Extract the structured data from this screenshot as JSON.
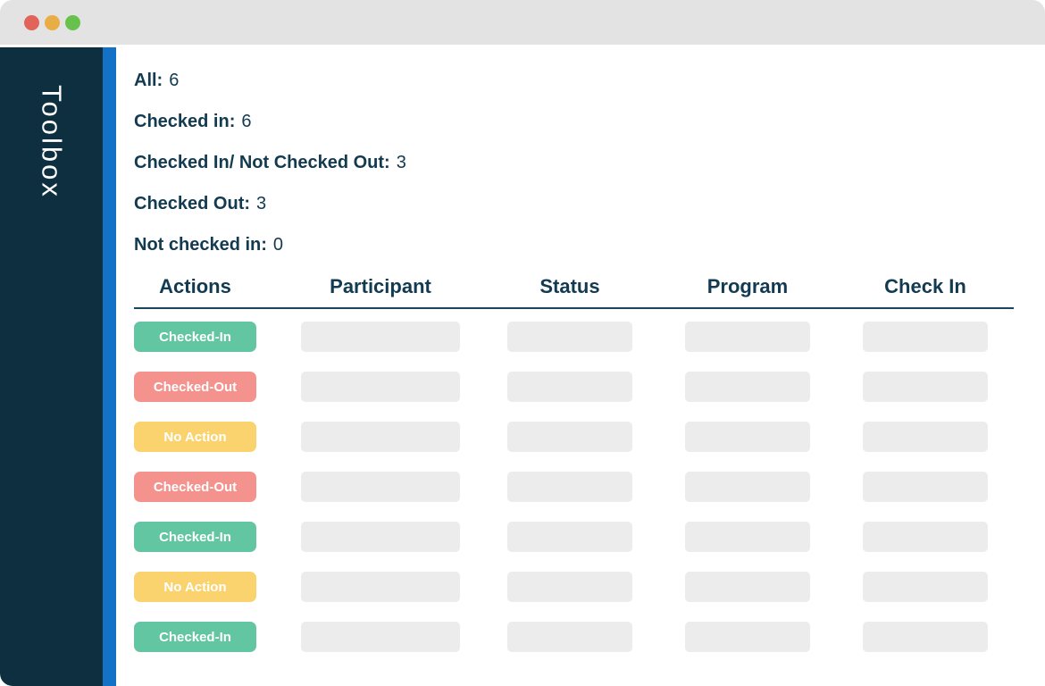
{
  "window": {
    "titlebar": {
      "close_color": "#e2635a",
      "minimize_color": "#e9ad45",
      "maximize_color": "#67c24c"
    }
  },
  "sidebar": {
    "title": "Toolbox"
  },
  "stats": [
    {
      "label": "All:",
      "value": "6"
    },
    {
      "label": "Checked in:",
      "value": "6"
    },
    {
      "label": "Checked In/ Not Checked Out:",
      "value": "3"
    },
    {
      "label": "Checked Out:",
      "value": "3"
    },
    {
      "label": "Not checked in:",
      "value": "0"
    }
  ],
  "table": {
    "headers": [
      "Actions",
      "Participant",
      "Status",
      "Program",
      "Check In"
    ],
    "rows": [
      {
        "action": "Checked-In",
        "type": "checked-in"
      },
      {
        "action": "Checked-Out",
        "type": "checked-out"
      },
      {
        "action": "No Action",
        "type": "no-action"
      },
      {
        "action": "Checked-Out",
        "type": "checked-out"
      },
      {
        "action": "Checked-In",
        "type": "checked-in"
      },
      {
        "action": "No Action",
        "type": "no-action"
      },
      {
        "action": "Checked-In",
        "type": "checked-in"
      }
    ],
    "placeholder_columns": [
      "participant",
      "status",
      "program",
      "checkin"
    ]
  },
  "colors": {
    "checked-in": "#63c6a3",
    "checked-out": "#f4928d",
    "no-action": "#fbd36e",
    "sidebar_bg": "#0d2f40",
    "accent_stripe": "#1371c6",
    "text_navy": "#123a50",
    "placeholder_bg": "#ececec",
    "topbar_bg": "#e3e3e3"
  }
}
